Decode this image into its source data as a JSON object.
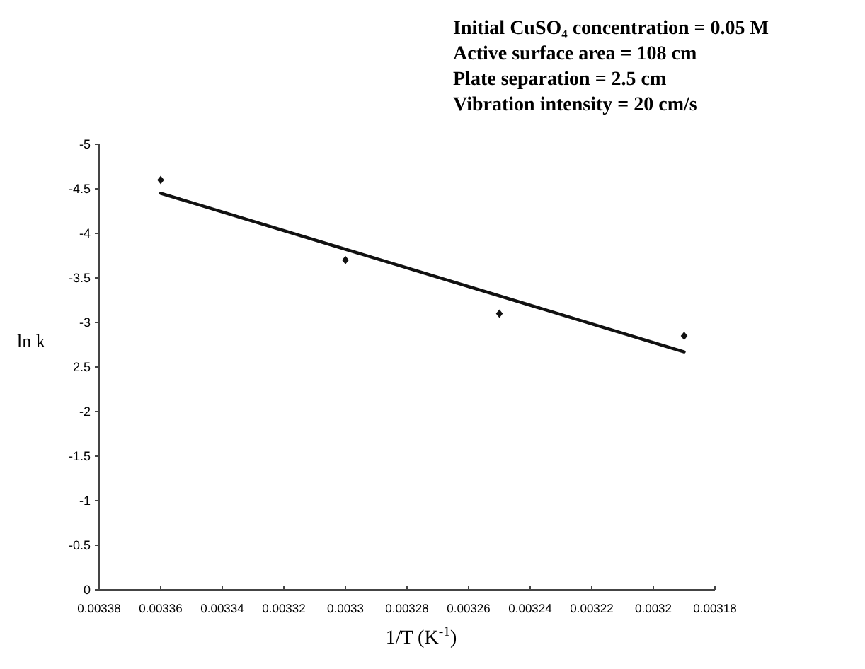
{
  "chart_data": {
    "type": "scatter",
    "xlabel": "1/T (K$^{-1}$)",
    "ylabel": "ln k",
    "annotations": [
      "Initial CuSO₄ concentration =  0.05 M",
      "Active surface area = 108 cm",
      "Plate separation = 2.5 cm",
      "Vibration intensity = 20 cm/s"
    ],
    "series": [
      {
        "color": "#111111",
        "x": [
          0.00336,
          0.0033,
          0.00325,
          0.00319
        ],
        "values": [
          -4.6,
          -3.7,
          -3.1,
          -2.85
        ],
        "marker": "diamond"
      },
      {
        "type": "line",
        "color": "#111111",
        "x": [
          0.00336,
          0.00319
        ],
        "values": [
          -4.45,
          -2.67
        ],
        "marker": "none",
        "line_style": "solid"
      }
    ],
    "xlim": [
      0.00338,
      0.00318
    ],
    "xticks": [
      0.00338,
      0.00336,
      0.00334,
      0.00332,
      0.0033,
      0.00328,
      0.00326,
      0.00324,
      0.00322,
      0.0032,
      0.00318
    ],
    "ylim": [
      0,
      -5
    ],
    "yticks": [
      0,
      -0.5,
      -1,
      -1.5,
      -2,
      {
        "value": -2.5,
        "label": "2.5"
      },
      -3,
      -3.5,
      -4,
      -4.5,
      -5
    ],
    "grid": false
  }
}
